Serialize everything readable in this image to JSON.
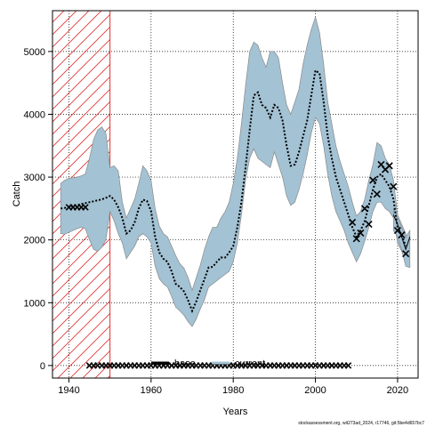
{
  "chart_data": {
    "type": "line",
    "xlabel": "Years",
    "ylabel": "Catch",
    "xlim": [
      1936,
      2025
    ],
    "ylim": [
      -200,
      5650
    ],
    "x_ticks": [
      1940,
      1960,
      1980,
      2000,
      2020
    ],
    "y_ticks": [
      0,
      1000,
      2000,
      3000,
      4000,
      5000
    ],
    "grid": "dotted",
    "shaded_period": {
      "start": 1936,
      "end": 1950,
      "color": "#e03030"
    },
    "band_color": "#a3c2d4",
    "band_edge_color": "#8a8a8a",
    "line_color": "#000000",
    "marker_color": "#000000",
    "legend_placement": "bottom-center",
    "legend": [
      {
        "label": "base",
        "color": "#000000"
      },
      {
        "label": "current",
        "color": "#a3c2d4"
      }
    ],
    "footnote": "stockassessment.org, wit273ad_2024, r17746, git:5be4d657bc7",
    "series": [
      {
        "name": "base",
        "x": [
          1938,
          1939,
          1940,
          1941,
          1942,
          1943,
          1944,
          1945,
          1946,
          1947,
          1948,
          1949,
          1950,
          1951,
          1952,
          1953,
          1954,
          1955,
          1956,
          1957,
          1958,
          1959,
          1960,
          1961,
          1962,
          1963,
          1964,
          1965,
          1966,
          1967,
          1968,
          1969,
          1970,
          1971,
          1972,
          1973,
          1974,
          1975,
          1976,
          1977,
          1978,
          1979,
          1980,
          1981,
          1982,
          1983,
          1984,
          1985,
          1986,
          1987,
          1988,
          1989,
          1990,
          1991,
          1992,
          1993,
          1994,
          1995,
          1996,
          1997,
          1998,
          1999,
          2000,
          2001,
          2002,
          2003,
          2004,
          2005,
          2006,
          2007,
          2008,
          2009,
          2010,
          2011,
          2012,
          2013,
          2014,
          2015,
          2016,
          2017,
          2018,
          2019,
          2020,
          2021,
          2022
        ],
        "estimate": [
          2500,
          2510,
          2530,
          2540,
          2555,
          2570,
          2585,
          2600,
          2615,
          2630,
          2645,
          2670,
          2700,
          2640,
          2520,
          2350,
          2100,
          2150,
          2280,
          2500,
          2640,
          2620,
          2460,
          2050,
          1800,
          1700,
          1650,
          1500,
          1300,
          1250,
          1180,
          1040,
          870,
          1020,
          1200,
          1380,
          1560,
          1570,
          1650,
          1720,
          1720,
          1800,
          1900,
          2200,
          2600,
          3150,
          3750,
          4300,
          4350,
          4150,
          4100,
          3950,
          4150,
          4100,
          3900,
          3500,
          3180,
          3200,
          3400,
          3650,
          3900,
          4300,
          4700,
          4650,
          4200,
          3650,
          3300,
          3000,
          2800,
          2600,
          2400,
          2200,
          2050,
          2150,
          2300,
          2550,
          2800,
          3000,
          3050,
          2950,
          2850,
          2650,
          2200,
          2080,
          1900
        ],
        "upper": [
          2900,
          2950,
          2980,
          2990,
          3000,
          3020,
          3050,
          3300,
          3600,
          3750,
          3800,
          3700,
          3150,
          3180,
          3100,
          2600,
          2350,
          2500,
          2650,
          2900,
          3180,
          3100,
          2950,
          2500,
          2220,
          2100,
          2050,
          1900,
          1750,
          1620,
          1550,
          1400,
          1200,
          1400,
          1600,
          1850,
          2050,
          2200,
          2200,
          2350,
          2450,
          2600,
          2900,
          3300,
          3850,
          4450,
          5000,
          5150,
          5100,
          4900,
          4750,
          5000,
          5000,
          4900,
          4500,
          4150,
          4000,
          4200,
          4400,
          4800,
          5100,
          5350,
          5550,
          5300,
          4800,
          4200,
          3850,
          3500,
          3250,
          3050,
          2850,
          2600,
          2380,
          2450,
          2650,
          2950,
          3200,
          3550,
          3500,
          3300,
          3200,
          2950,
          2400,
          2250,
          2100
        ],
        "lower": [
          2100,
          2090,
          2120,
          2150,
          2180,
          2200,
          2180,
          2000,
          1850,
          1820,
          1880,
          2000,
          2450,
          2300,
          2100,
          1950,
          1700,
          1800,
          1900,
          2050,
          2100,
          2050,
          1950,
          1580,
          1380,
          1300,
          1250,
          1100,
          930,
          870,
          800,
          700,
          620,
          740,
          900,
          1050,
          1250,
          1300,
          1350,
          1400,
          1450,
          1500,
          1650,
          1950,
          2400,
          2950,
          3300,
          3450,
          3300,
          3250,
          3200,
          3150,
          3400,
          3200,
          3000,
          2700,
          2550,
          2600,
          2800,
          3050,
          3350,
          3700,
          3950,
          3850,
          3500,
          3050,
          2700,
          2450,
          2300,
          2150,
          1950,
          1800,
          1650,
          1780,
          1980,
          2200,
          2450,
          2600,
          2600,
          2500,
          2450,
          2350,
          1950,
          1820,
          1650
        ],
        "observed_x": [
          2009,
          2010,
          2011,
          2012,
          2013,
          2014,
          2015,
          2016,
          2017,
          2018,
          2019,
          2020,
          2021,
          2022
        ],
        "observed": [
          2280,
          2020,
          2110,
          2500,
          2250,
          2950,
          2730,
          3200,
          3120,
          3180,
          2850,
          2150,
          2080,
          1780
        ],
        "obs_1940s_x": [
          1940,
          1941,
          1942,
          1943,
          1944
        ],
        "obs_1940s": [
          2520,
          2520,
          2520,
          2520,
          2520
        ],
        "zero_x_start": 1945,
        "zero_x_end": 2008,
        "zero_value": 0
      },
      {
        "name": "current",
        "x": [
          2019,
          2020,
          2021,
          2022,
          2023
        ],
        "estimate": [
          2400,
          2250,
          2050,
          1850,
          2050
        ],
        "upper": [
          2500,
          2350,
          2200,
          2050,
          2150
        ],
        "lower": [
          2150,
          2050,
          1850,
          1580,
          1560
        ]
      }
    ]
  }
}
